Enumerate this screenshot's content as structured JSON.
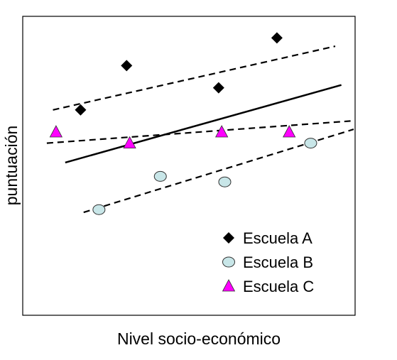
{
  "chart_data": {
    "type": "scatter",
    "title": "",
    "xlabel": "Nivel socio-económico",
    "ylabel": "puntuación",
    "xlim": [
      0,
      10
    ],
    "ylim": [
      0,
      10
    ],
    "grid": false,
    "axes_ticks": false,
    "legend_position": "bottom-right",
    "series": [
      {
        "name": "Escuela A",
        "marker": "diamond",
        "color": "#000000",
        "points": [
          [
            1.7,
            6.8
          ],
          [
            3.2,
            8.4
          ],
          [
            6.2,
            7.6
          ],
          [
            8.1,
            9.4
          ]
        ],
        "trend": {
          "x": [
            0.8,
            10.0
          ],
          "y": [
            6.8,
            9.1
          ],
          "style": "dashed"
        }
      },
      {
        "name": "Escuela B",
        "marker": "circle",
        "color": "#c8e6e8",
        "points": [
          [
            2.3,
            3.2
          ],
          [
            4.3,
            4.4
          ],
          [
            6.4,
            4.2
          ],
          [
            9.2,
            5.6
          ]
        ],
        "trend": {
          "x": [
            1.8,
            10.6
          ],
          "y": [
            3.1,
            6.1
          ],
          "style": "dashed"
        }
      },
      {
        "name": "Escuela C",
        "marker": "triangle",
        "color": "#ff00ff",
        "points": [
          [
            0.9,
            6.0
          ],
          [
            3.3,
            5.6
          ],
          [
            6.3,
            6.0
          ],
          [
            8.5,
            6.0
          ]
        ],
        "trend": {
          "x": [
            0.6,
            10.5
          ],
          "y": [
            5.6,
            6.4
          ],
          "style": "dashed"
        }
      }
    ],
    "overall_trend": {
      "x": [
        1.2,
        10.2
      ],
      "y": [
        4.9,
        7.7
      ],
      "style": "solid"
    }
  }
}
